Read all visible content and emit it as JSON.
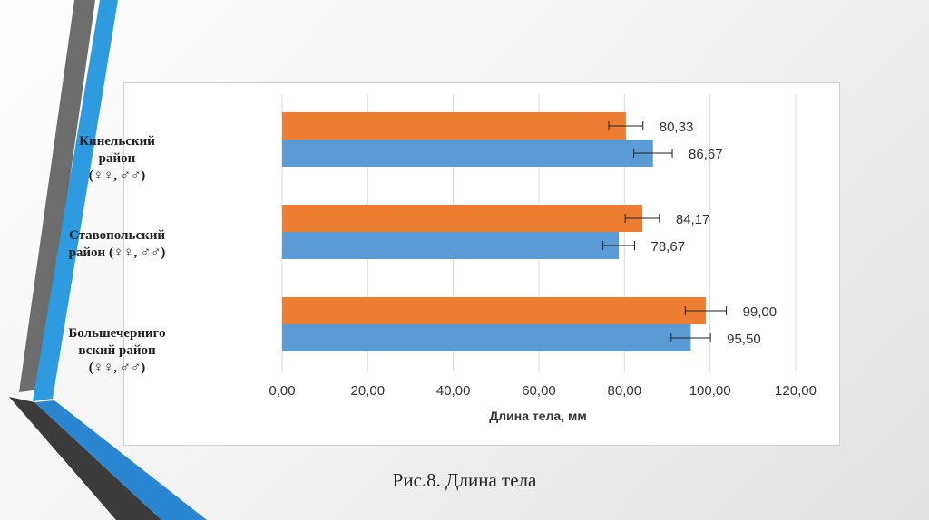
{
  "caption": "Рис.8. Длина тела",
  "chart_data": {
    "type": "bar",
    "orientation": "horizontal",
    "categories": [
      [
        "Кинельский",
        "район",
        "(♀♀, ♂♂)"
      ],
      [
        "Ставопольский",
        "район (♀♀, ♂♂)"
      ],
      [
        "Большечерниго",
        "вский район",
        "(♀♀, ♂♂)"
      ]
    ],
    "series": [
      {
        "color": "#ed7d31",
        "values": [
          80.33,
          84.17,
          99.0
        ],
        "errors": [
          4.0,
          4.0,
          4.8
        ],
        "labels": [
          "80,33",
          "84,17",
          "99,00"
        ]
      },
      {
        "color": "#5b9bd5",
        "values": [
          86.67,
          78.67,
          95.5
        ],
        "errors": [
          4.5,
          3.7,
          4.6
        ],
        "labels": [
          "86,67",
          "78,67",
          "95,50"
        ]
      }
    ],
    "xlim": [
      0,
      120
    ],
    "xticks": [
      "0,00",
      "20,00",
      "40,00",
      "60,00",
      "80,00",
      "100,00",
      "120,00"
    ],
    "xlabel": "Длина тела, мм",
    "grid": true,
    "legend": "none"
  }
}
